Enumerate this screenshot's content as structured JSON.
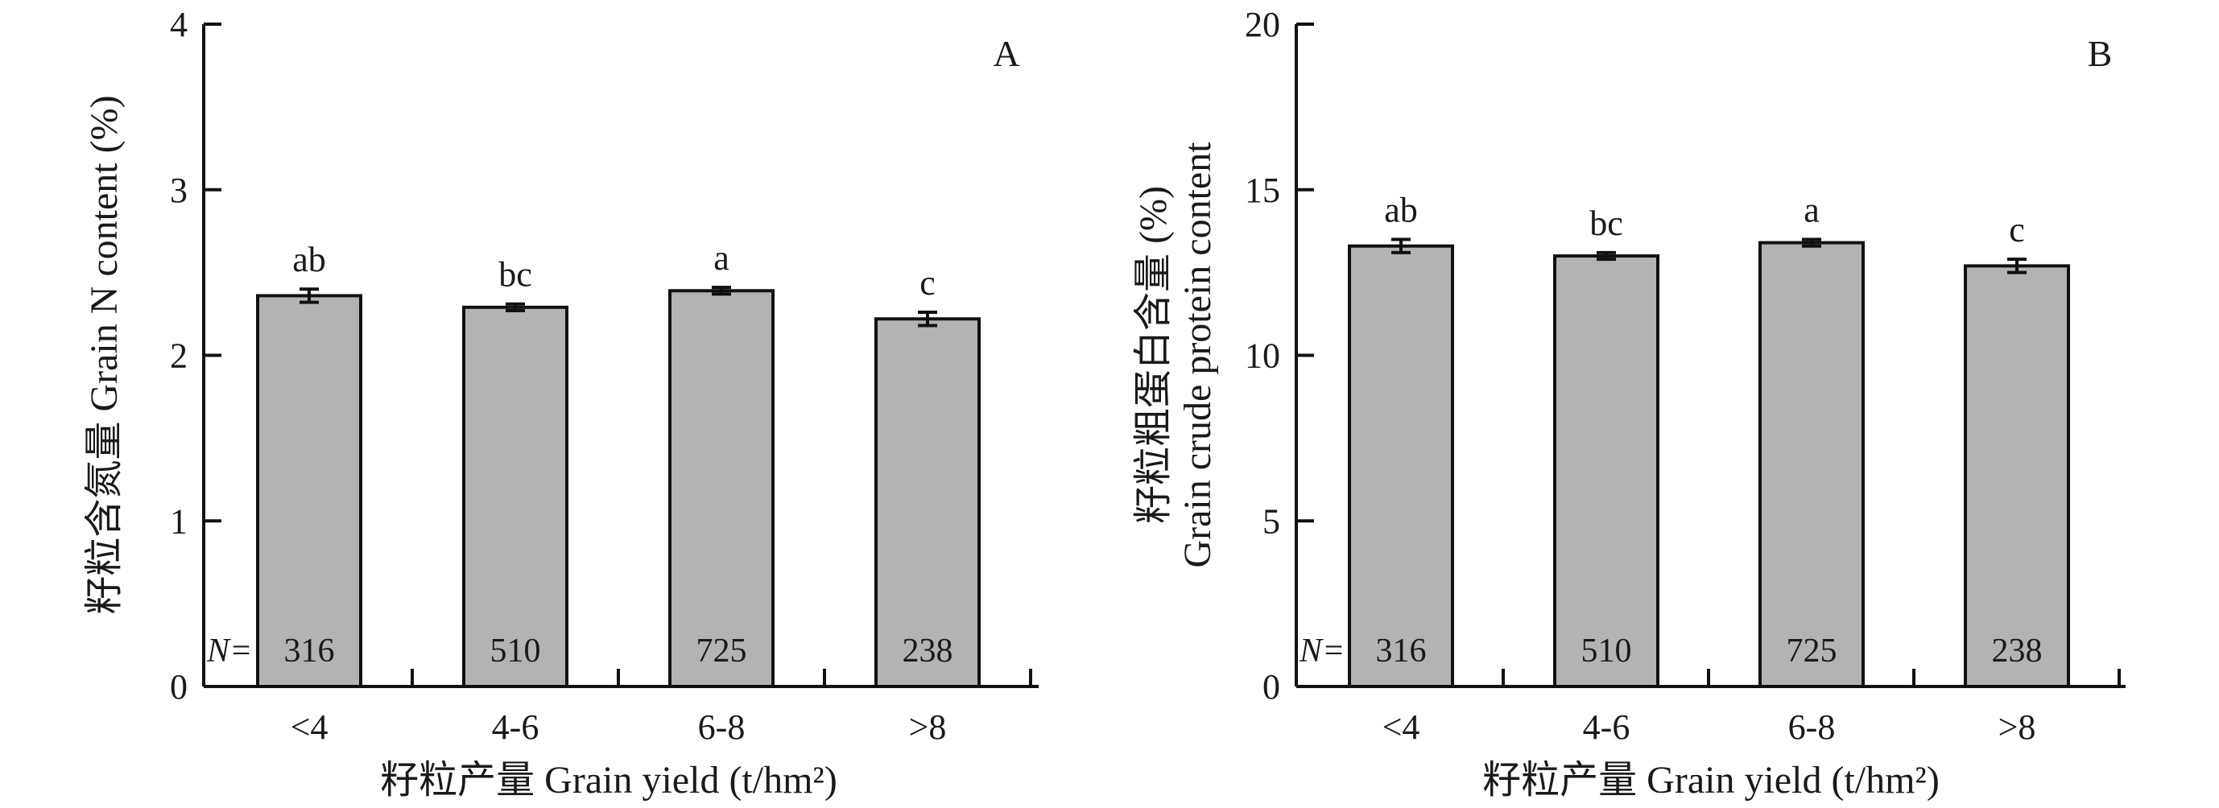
{
  "chart_data": [
    {
      "type": "bar",
      "panel_label": "A",
      "categories": [
        "<4",
        "4-6",
        "6-8",
        ">8"
      ],
      "values": [
        2.36,
        2.29,
        2.39,
        2.22
      ],
      "errors": [
        0.04,
        0.02,
        0.02,
        0.04
      ],
      "letters": [
        "ab",
        "bc",
        "a",
        "c"
      ],
      "n_prefix": "N=",
      "n_values": [
        "316",
        "510",
        "725",
        "238"
      ],
      "xlabel": "籽粒产量 Grain yield (t/hm²)",
      "ylabel": "籽粒含氮量 Grain N content (%)",
      "ylim": [
        0,
        4
      ],
      "yticks": [
        0,
        1,
        2,
        3,
        4
      ],
      "grid": false,
      "bar_color": "#b3b3b3"
    },
    {
      "type": "bar",
      "panel_label": "B",
      "categories": [
        "<4",
        "4-6",
        "6-8",
        ">8"
      ],
      "values": [
        13.3,
        13.0,
        13.4,
        12.7
      ],
      "errors": [
        0.2,
        0.1,
        0.1,
        0.2
      ],
      "letters": [
        "ab",
        "bc",
        "a",
        "c"
      ],
      "n_prefix": "N=",
      "n_values": [
        "316",
        "510",
        "725",
        "238"
      ],
      "xlabel": "籽粒产量 Grain yield (t/hm²)",
      "ylabel_lines": [
        "籽粒粗蛋白含量 (%)",
        "Grain crude protein content"
      ],
      "ylim": [
        0,
        20
      ],
      "yticks": [
        0,
        5,
        10,
        15,
        20
      ],
      "grid": false,
      "bar_color": "#b3b3b3"
    }
  ]
}
